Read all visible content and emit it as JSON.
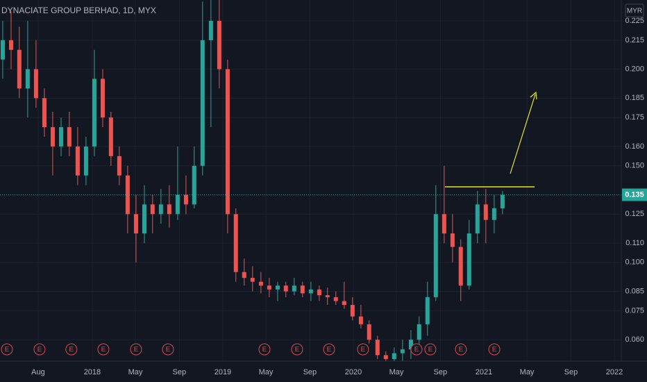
{
  "chart_data": {
    "type": "candlestick",
    "title": "DYNACIATE GROUP BERHAD, 1D, MYX",
    "currency": "MYR",
    "up_color": "#26a69a",
    "down_color": "#ef5350",
    "grid": true,
    "x": [
      2017.314,
      2017.378,
      2017.441,
      2017.505,
      2017.569,
      2017.633,
      2017.697,
      2017.761,
      2017.824,
      2017.888,
      2017.952,
      2018.016,
      2018.08,
      2018.143,
      2018.207,
      2018.271,
      2018.335,
      2018.399,
      2018.462,
      2018.526,
      2018.59,
      2018.654,
      2018.718,
      2018.781,
      2018.845,
      2018.909,
      2018.973,
      2019.037,
      2019.1,
      2019.164,
      2019.228,
      2019.292,
      2019.356,
      2019.42,
      2019.483,
      2019.547,
      2019.611,
      2019.675,
      2019.739,
      2019.802,
      2019.866,
      2019.93,
      2019.994,
      2020.058,
      2020.121,
      2020.185,
      2020.249,
      2020.313,
      2020.377,
      2020.441,
      2020.504,
      2020.568,
      2020.632,
      2020.696,
      2020.76,
      2020.823,
      2020.887,
      2020.951,
      2021.015,
      2021.079,
      2021.143
    ],
    "open": [
      0.205,
      0.215,
      0.21,
      0.19,
      0.2,
      0.185,
      0.17,
      0.16,
      0.17,
      0.16,
      0.145,
      0.16,
      0.195,
      0.175,
      0.155,
      0.145,
      0.125,
      0.115,
      0.13,
      0.125,
      0.13,
      0.125,
      0.135,
      0.13,
      0.15,
      0.215,
      0.225,
      0.2,
      0.125,
      0.095,
      0.092,
      0.09,
      0.088,
      0.086,
      0.088,
      0.085,
      0.088,
      0.084,
      0.086,
      0.083,
      0.082,
      0.08,
      0.078,
      0.072,
      0.068,
      0.06,
      0.052,
      0.05,
      0.053,
      0.055,
      0.06,
      0.068,
      0.082,
      0.125,
      0.115,
      0.108,
      0.088,
      0.115,
      0.13,
      0.122,
      0.128
    ],
    "high": [
      0.225,
      0.23,
      0.222,
      0.225,
      0.215,
      0.19,
      0.178,
      0.175,
      0.178,
      0.17,
      0.165,
      0.21,
      0.2,
      0.178,
      0.16,
      0.15,
      0.135,
      0.14,
      0.135,
      0.138,
      0.14,
      0.16,
      0.145,
      0.16,
      0.235,
      0.236,
      0.236,
      0.205,
      0.128,
      0.102,
      0.098,
      0.095,
      0.092,
      0.09,
      0.09,
      0.092,
      0.09,
      0.09,
      0.088,
      0.087,
      0.085,
      0.09,
      0.082,
      0.078,
      0.07,
      0.062,
      0.054,
      0.056,
      0.06,
      0.065,
      0.072,
      0.09,
      0.14,
      0.15,
      0.125,
      0.112,
      0.122,
      0.137,
      0.138,
      0.135,
      0.137
    ],
    "low": [
      0.195,
      0.2,
      0.185,
      0.175,
      0.18,
      0.165,
      0.145,
      0.155,
      0.155,
      0.14,
      0.14,
      0.155,
      0.17,
      0.15,
      0.14,
      0.115,
      0.1,
      0.11,
      0.115,
      0.12,
      0.118,
      0.122,
      0.125,
      0.128,
      0.145,
      0.17,
      0.19,
      0.115,
      0.09,
      0.088,
      0.085,
      0.084,
      0.082,
      0.08,
      0.082,
      0.083,
      0.082,
      0.08,
      0.08,
      0.078,
      0.078,
      0.076,
      0.07,
      0.066,
      0.058,
      0.05,
      0.049,
      0.049,
      0.049,
      0.05,
      0.055,
      0.062,
      0.08,
      0.11,
      0.1,
      0.08,
      0.086,
      0.11,
      0.11,
      0.115,
      0.125
    ],
    "close": [
      0.215,
      0.21,
      0.19,
      0.2,
      0.185,
      0.17,
      0.16,
      0.17,
      0.16,
      0.145,
      0.16,
      0.195,
      0.175,
      0.155,
      0.145,
      0.125,
      0.115,
      0.13,
      0.125,
      0.13,
      0.125,
      0.135,
      0.13,
      0.15,
      0.215,
      0.225,
      0.2,
      0.125,
      0.095,
      0.092,
      0.09,
      0.088,
      0.086,
      0.088,
      0.085,
      0.088,
      0.084,
      0.086,
      0.083,
      0.082,
      0.08,
      0.078,
      0.072,
      0.068,
      0.06,
      0.052,
      0.05,
      0.053,
      0.055,
      0.06,
      0.068,
      0.082,
      0.125,
      0.115,
      0.108,
      0.088,
      0.115,
      0.13,
      0.122,
      0.128,
      0.135
    ],
    "last_price": 0.135,
    "earnings": {
      "label": "E",
      "x": [
        2017.346,
        2017.596,
        2017.84,
        2018.085,
        2018.335,
        2018.58,
        2019.319,
        2019.569,
        2019.814,
        2020.074,
        2020.484,
        2020.59,
        2020.824,
        2021.08
      ]
    },
    "xlim": [
      2017.293,
      2022.053
    ],
    "ylim": [
      0.0489,
      0.2358
    ],
    "xticks": [
      {
        "value": 2017.585,
        "label": "Aug"
      },
      {
        "value": 2018,
        "label": "2018"
      },
      {
        "value": 2018.33,
        "label": "May"
      },
      {
        "value": 2018.667,
        "label": "Sep"
      },
      {
        "value": 2019,
        "label": "2019"
      },
      {
        "value": 2019.33,
        "label": "May"
      },
      {
        "value": 2019.667,
        "label": "Sep"
      },
      {
        "value": 2020,
        "label": "2020"
      },
      {
        "value": 2020.33,
        "label": "May"
      },
      {
        "value": 2020.667,
        "label": "Sep"
      },
      {
        "value": 2021,
        "label": "2021"
      },
      {
        "value": 2021.33,
        "label": "May"
      },
      {
        "value": 2021.667,
        "label": "Sep"
      },
      {
        "value": 2022,
        "label": "2022"
      }
    ],
    "yticks": [
      0.225,
      0.215,
      {
        "value": 0.2,
        "label": "0.200"
      },
      0.185,
      0.175,
      {
        "value": 0.16,
        "label": "0.160"
      },
      {
        "value": 0.15,
        "label": "0.150"
      },
      0.125,
      {
        "value": 0.11,
        "label": "0.110"
      },
      {
        "value": 0.1,
        "label": "0.100"
      },
      0.085,
      0.075,
      {
        "value": 0.06,
        "label": "0.060"
      }
    ]
  }
}
